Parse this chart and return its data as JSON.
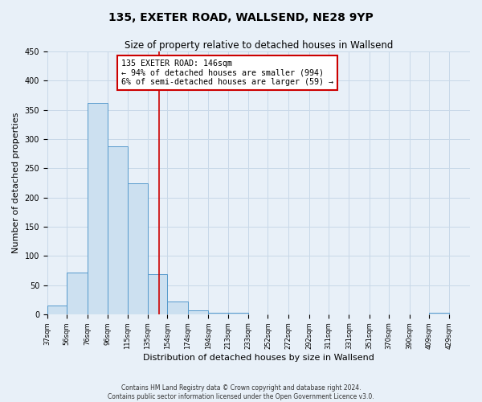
{
  "title": "135, EXETER ROAD, WALLSEND, NE28 9YP",
  "subtitle": "Size of property relative to detached houses in Wallsend",
  "xlabel": "Distribution of detached houses by size in Wallsend",
  "ylabel": "Number of detached properties",
  "bar_left_edges": [
    37,
    56,
    76,
    96,
    115,
    135,
    154,
    174,
    194,
    213,
    233,
    252,
    272,
    292,
    311,
    331,
    351,
    370,
    390,
    409
  ],
  "bar_widths": [
    19,
    20,
    20,
    19,
    20,
    19,
    20,
    20,
    19,
    20,
    19,
    20,
    20,
    19,
    20,
    20,
    19,
    20,
    19,
    20
  ],
  "bar_heights": [
    15,
    72,
    362,
    288,
    225,
    68,
    22,
    7,
    3,
    3,
    0,
    0,
    0,
    0,
    0,
    0,
    0,
    0,
    0,
    3
  ],
  "bar_color": "#cce0f0",
  "bar_edge_color": "#5599cc",
  "tick_labels": [
    "37sqm",
    "56sqm",
    "76sqm",
    "96sqm",
    "115sqm",
    "135sqm",
    "154sqm",
    "174sqm",
    "194sqm",
    "213sqm",
    "233sqm",
    "252sqm",
    "272sqm",
    "292sqm",
    "311sqm",
    "331sqm",
    "351sqm",
    "370sqm",
    "390sqm",
    "409sqm",
    "429sqm"
  ],
  "ylim": [
    0,
    450
  ],
  "yticks": [
    0,
    50,
    100,
    150,
    200,
    250,
    300,
    350,
    400,
    450
  ],
  "property_line_x": 146,
  "annotation_title": "135 EXETER ROAD: 146sqm",
  "annotation_line1": "← 94% of detached houses are smaller (994)",
  "annotation_line2": "6% of semi-detached houses are larger (59) →",
  "annotation_box_color": "#ffffff",
  "annotation_box_edge_color": "#cc0000",
  "property_line_color": "#cc0000",
  "grid_color": "#c8d8e8",
  "background_color": "#e8f0f8",
  "footer_line1": "Contains HM Land Registry data © Crown copyright and database right 2024.",
  "footer_line2": "Contains public sector information licensed under the Open Government Licence v3.0."
}
